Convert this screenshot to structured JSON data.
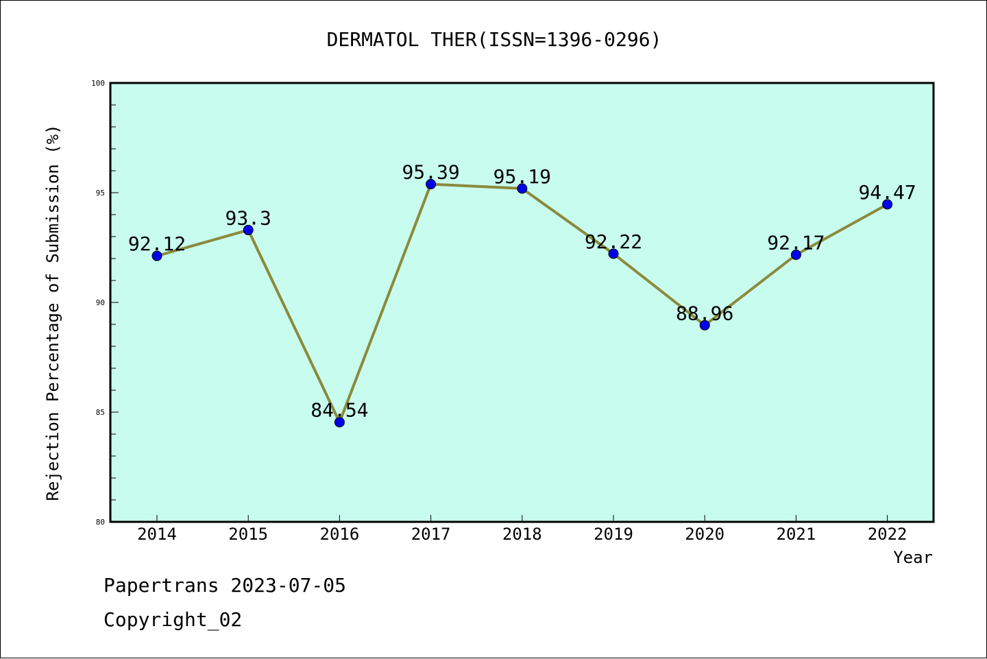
{
  "chart_data": {
    "type": "line",
    "title": "DERMATOL THER(ISSN=1396-0296)",
    "xlabel": "Year",
    "ylabel": "Rejection Percentage of Submission (%)",
    "categories": [
      "2014",
      "2015",
      "2016",
      "2017",
      "2018",
      "2019",
      "2020",
      "2021",
      "2022"
    ],
    "values": [
      92.12,
      93.3,
      84.54,
      95.39,
      95.19,
      92.22,
      88.96,
      92.17,
      94.47
    ],
    "data_labels": [
      "92.12",
      "93.3",
      "84.54",
      "95.39",
      "95.19",
      "92.22",
      "88.96",
      "92.17",
      "94.47"
    ],
    "ylim": [
      80,
      100
    ],
    "y_ticks": [
      "80",
      "85",
      "90",
      "95",
      "100"
    ],
    "grid": false,
    "colors": {
      "plot_background": "#c8fcee",
      "line": "#8b8a3c",
      "marker": "#0000ee",
      "axes": "#000000"
    }
  },
  "footer": {
    "line1": "Papertrans 2023-07-05",
    "line2": "Copyright_02"
  }
}
